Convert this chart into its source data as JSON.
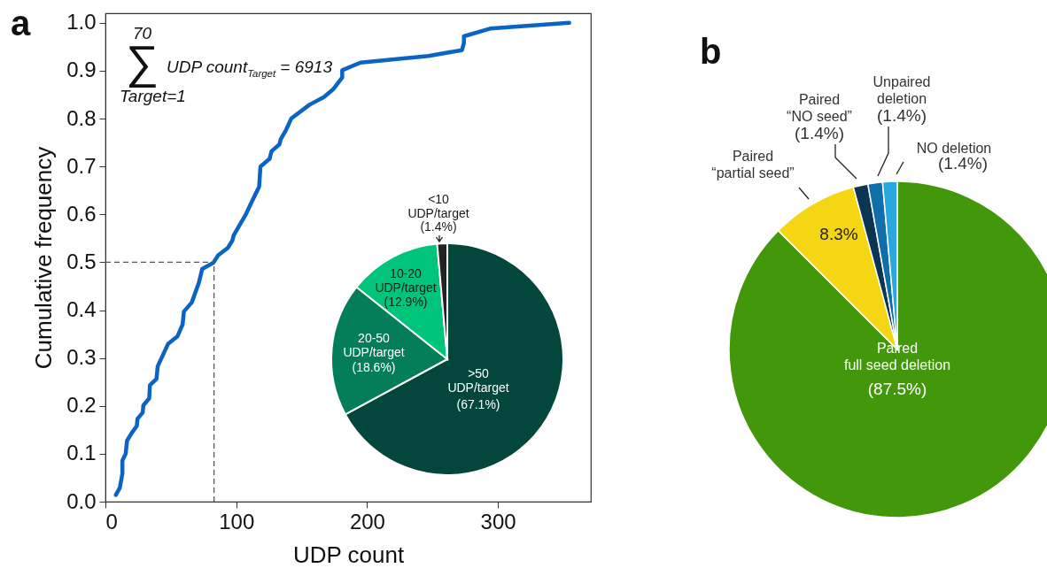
{
  "chart_data": [
    {
      "type": "line",
      "title": "a",
      "xlabel": "UDP count",
      "ylabel": "Cumulative frequency",
      "color": "#0a64c4",
      "x": [
        8,
        11,
        13,
        13,
        15.5,
        16.5,
        20,
        24,
        24.5,
        28.5,
        29,
        33.5,
        34,
        39,
        40,
        48,
        55,
        59,
        60,
        66,
        71.5,
        74,
        82.5,
        86,
        93.5,
        97,
        98,
        107.5,
        111.5,
        117.5,
        118.5,
        125.5,
        127,
        133,
        134,
        138,
        142,
        156,
        167,
        174,
        181,
        181,
        195,
        247,
        272.5,
        274,
        274,
        294,
        354.5
      ],
      "values": [
        0.014,
        0.029,
        0.059,
        0.086,
        0.1,
        0.127,
        0.143,
        0.158,
        0.173,
        0.186,
        0.201,
        0.216,
        0.243,
        0.256,
        0.283,
        0.33,
        0.345,
        0.37,
        0.397,
        0.416,
        0.458,
        0.486,
        0.499,
        0.514,
        0.53,
        0.545,
        0.556,
        0.601,
        0.624,
        0.658,
        0.7,
        0.716,
        0.732,
        0.746,
        0.757,
        0.776,
        0.8,
        0.829,
        0.845,
        0.861,
        0.886,
        0.901,
        0.917,
        0.931,
        0.943,
        0.958,
        0.972,
        0.988,
        1.0
      ],
      "xlim": [
        0,
        371
      ],
      "ylim": [
        0,
        1.02
      ],
      "xticks": [
        0,
        100,
        200,
        300
      ],
      "yticks": [
        {
          "value": 0,
          "label": "0.0"
        },
        {
          "value": 0.1,
          "label": "0.1"
        },
        {
          "value": 0.2,
          "label": "0.2"
        },
        {
          "value": 0.3,
          "label": "0.3"
        },
        {
          "value": 0.4,
          "label": "0.4"
        },
        {
          "value": 0.5,
          "label": "0.5"
        },
        {
          "value": 0.6,
          "label": "0.6"
        },
        {
          "value": 0.7,
          "label": "0.7"
        },
        {
          "value": 0.8,
          "label": "0.8"
        },
        {
          "value": 0.9,
          "label": "0.9"
        },
        {
          "value": 1,
          "label": "1.0"
        }
      ],
      "ref_lines": [
        {
          "axis": "y",
          "value": 0.5,
          "color": "#555555",
          "line_style": "dashed"
        },
        {
          "axis": "x",
          "value": 83,
          "color": "#555555",
          "line_style": "dashed"
        }
      ],
      "annotations": [
        "70",
        "∑",
        "Target=1",
        "UDP count$_{Target}$ = 6913"
      ]
    },
    {
      "type": "pie",
      "categories": [
        ">50 UDP/target",
        "20-50 UDP/target",
        "10-20 UDP/target",
        "<10 UDP/target"
      ],
      "values": [
        67.1,
        18.6,
        12.9,
        1.4
      ],
      "colors": [
        "#03463b",
        "#047e58",
        "#00c47a",
        "#222222"
      ],
      "value_labels": [
        "(67.1%)",
        "(18.6%)",
        "(12.9%)",
        "(1.4%)"
      ]
    },
    {
      "type": "pie",
      "title": "b",
      "categories": [
        "Paired full seed deletion",
        "Paired “partial seed”",
        "Paired “NO seed”",
        "Unpaired deletion",
        "NO deletion"
      ],
      "values": [
        87.5,
        8.3,
        1.4,
        1.4,
        1.4
      ],
      "colors": [
        "#42980a",
        "#f5d612",
        "#0c3554",
        "#0f6fab",
        "#2aa6e0"
      ],
      "value_labels": [
        "(87.5%)",
        "8.3%",
        "(1.4%)",
        "(1.4%)",
        "(1.4%)"
      ]
    }
  ]
}
